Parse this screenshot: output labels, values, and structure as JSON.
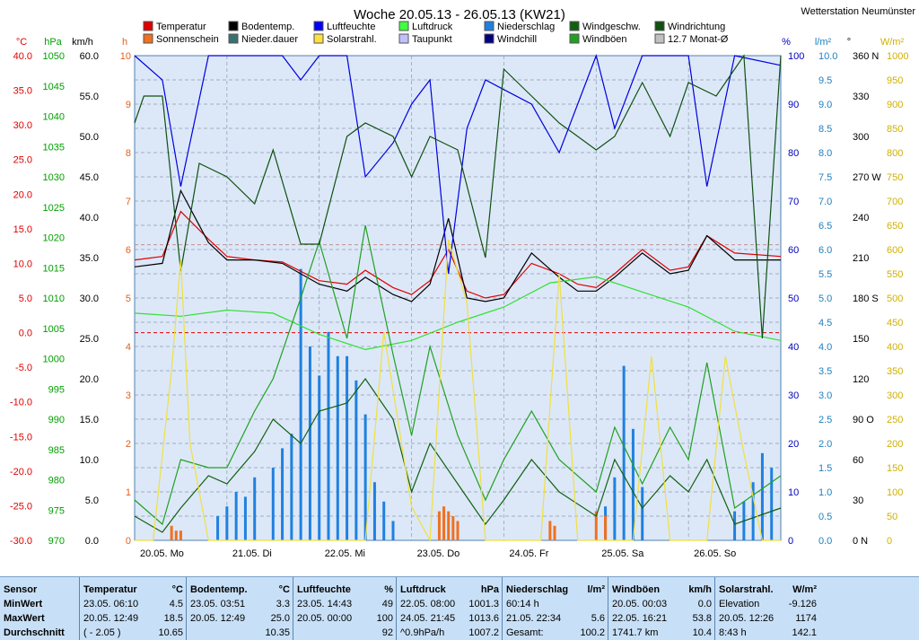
{
  "title": "Woche 20.05.13 - 26.05.13 (KW21)",
  "station": "Wetterstation Neumünster",
  "legend": [
    {
      "label": "Temperatur",
      "color": "#e00000"
    },
    {
      "label": "Sonnenschein",
      "color": "#f07020"
    },
    {
      "label": "Bodentemp.",
      "color": "#000000"
    },
    {
      "label": "Nieder.dauer",
      "color": "#3a7070"
    },
    {
      "label": "Luftfeuchte",
      "color": "#0000ff"
    },
    {
      "label": "Solarstrahl.",
      "color": "#ffe040"
    },
    {
      "label": "Luftdruck",
      "color": "#40ff40"
    },
    {
      "label": "Taupunkt",
      "color": "#c0c0ff"
    },
    {
      "label": "Niederschlag",
      "color": "#2080e0"
    },
    {
      "label": "Windchill",
      "color": "#000080"
    },
    {
      "label": "Windgeschw.",
      "color": "#106010"
    },
    {
      "label": "Windböen",
      "color": "#20a020"
    },
    {
      "label": "Windrichtung",
      "color": "#105010"
    },
    {
      "label": "12.7 Monat-Ø",
      "color": "#c0c0c0"
    }
  ],
  "chart_data": {
    "type": "line",
    "x_labels": [
      "20.05. Mo",
      "21.05. Di",
      "22.05. Mi",
      "23.05. Do",
      "24.05. Fr",
      "25.05. Sa",
      "26.05. So"
    ],
    "axes": {
      "temp": {
        "unit": "°C",
        "min": -30,
        "max": 40,
        "ticks": [
          "40.0",
          "35.0",
          "30.0",
          "25.0",
          "20.0",
          "15.0",
          "10.0",
          "5.0",
          "0.0",
          "-5.0",
          "-10.0",
          "-15.0",
          "-20.0",
          "-25.0",
          "-30.0"
        ]
      },
      "pressure": {
        "unit": "hPa",
        "min": 970,
        "max": 1050,
        "ticks": [
          "1050",
          "1045",
          "1040",
          "1035",
          "1030",
          "1025",
          "1020",
          "1015",
          "1010",
          "1005",
          "1000",
          "995",
          "990",
          "985",
          "980",
          "975",
          "970"
        ]
      },
      "wind": {
        "unit": "km/h",
        "min": 0,
        "max": 60,
        "ticks": [
          "60.0",
          "55.0",
          "50.0",
          "45.0",
          "40.0",
          "35.0",
          "30.0",
          "25.0",
          "20.0",
          "15.0",
          "10.0",
          "5.0",
          "0.0"
        ]
      },
      "sun_hours": {
        "unit": "h",
        "min": 0,
        "max": 10,
        "ticks": [
          "10",
          "9",
          "8",
          "7",
          "6",
          "5",
          "4",
          "3",
          "2",
          "1",
          "0"
        ]
      },
      "humidity": {
        "unit": "%",
        "min": 0,
        "max": 100,
        "ticks": [
          "100",
          "90",
          "80",
          "70",
          "60",
          "50",
          "40",
          "30",
          "20",
          "10",
          "0"
        ]
      },
      "rain": {
        "unit": "l/m²",
        "min": 0,
        "max": 10,
        "ticks": [
          "10.0",
          "9.5",
          "9.0",
          "8.5",
          "8.0",
          "7.5",
          "7.0",
          "6.5",
          "6.0",
          "5.5",
          "5.0",
          "4.5",
          "4.0",
          "3.5",
          "3.0",
          "2.5",
          "2.0",
          "1.5",
          "1.0",
          "0.5",
          "0.0"
        ]
      },
      "direction": {
        "unit": "°",
        "min": 0,
        "max": 360,
        "ticks": [
          "360 N",
          "330",
          "300",
          "270 W",
          "240",
          "210",
          "180 S",
          "150",
          "120",
          "90 O",
          "60",
          "30",
          "0 N"
        ]
      },
      "solar": {
        "unit": "W/m²",
        "min": 0,
        "max": 1000,
        "ticks": [
          "1000",
          "950",
          "900",
          "850",
          "800",
          "750",
          "700",
          "650",
          "600",
          "550",
          "500",
          "450",
          "400",
          "350",
          "300",
          "250",
          "200",
          "150",
          "100",
          "50",
          "0"
        ]
      }
    },
    "series": [
      {
        "name": "Temperatur",
        "x": [
          0,
          0.3,
          0.5,
          0.8,
          1.0,
          1.3,
          1.6,
          2.0,
          2.3,
          2.5,
          2.8,
          3.0,
          3.2,
          3.4,
          3.6,
          3.8,
          4.0,
          4.3,
          4.6,
          4.8,
          5.0,
          5.2,
          5.5,
          5.8,
          6.0,
          6.2,
          6.5,
          7.0
        ],
        "values": [
          10.5,
          11.0,
          17.5,
          13.5,
          11.0,
          10.5,
          10.2,
          7.5,
          7.0,
          9.0,
          6.5,
          5.5,
          7.5,
          12.0,
          6.0,
          5.0,
          5.5,
          10.0,
          8.5,
          7.0,
          6.5,
          8.5,
          12.0,
          9.0,
          9.5,
          14.0,
          11.5,
          11.0
        ]
      },
      {
        "name": "Bodentemp.",
        "x": [
          0,
          0.3,
          0.5,
          0.8,
          1.0,
          1.3,
          1.6,
          2.0,
          2.3,
          2.5,
          2.8,
          3.0,
          3.2,
          3.4,
          3.6,
          3.8,
          4.0,
          4.3,
          4.6,
          4.8,
          5.0,
          5.2,
          5.5,
          5.8,
          6.0,
          6.2,
          6.5,
          7.0
        ],
        "values": [
          9.5,
          10.0,
          20.5,
          13.0,
          10.5,
          10.5,
          10.0,
          7.0,
          6.0,
          8.0,
          5.5,
          4.5,
          7.0,
          16.5,
          5.0,
          4.5,
          5.0,
          11.5,
          8.0,
          6.0,
          6.0,
          8.0,
          11.5,
          8.5,
          9.0,
          14.0,
          10.5,
          10.5
        ]
      },
      {
        "name": "Luftdruck",
        "x": [
          0,
          0.5,
          1.0,
          1.5,
          2.0,
          2.5,
          3.0,
          3.5,
          4.0,
          4.5,
          5.0,
          5.5,
          6.0,
          6.5,
          7.0
        ],
        "values": [
          1007.5,
          1007.0,
          1008.0,
          1007.5,
          1004.0,
          1001.5,
          1003.0,
          1006.0,
          1008.5,
          1012.5,
          1013.5,
          1011.0,
          1008.5,
          1004.5,
          1003.0
        ]
      },
      {
        "name": "Luftfeuchte",
        "x": [
          0,
          0.3,
          0.5,
          0.8,
          1.0,
          1.3,
          1.6,
          1.8,
          2.0,
          2.3,
          2.5,
          2.8,
          3.0,
          3.2,
          3.4,
          3.6,
          3.8,
          4.0,
          4.3,
          4.6,
          4.8,
          5.0,
          5.2,
          5.5,
          5.8,
          6.0,
          6.2,
          6.5,
          7.0
        ],
        "values": [
          100,
          95,
          73,
          100,
          100,
          100,
          100,
          95,
          100,
          100,
          75,
          82,
          90,
          95,
          55,
          85,
          95,
          93,
          90,
          80,
          90,
          100,
          85,
          100,
          100,
          100,
          73,
          100,
          98
        ]
      },
      {
        "name": "Windgeschw.",
        "x": [
          0,
          0.3,
          0.5,
          0.8,
          1.0,
          1.3,
          1.5,
          1.8,
          2.0,
          2.3,
          2.5,
          2.8,
          3.0,
          3.2,
          3.5,
          3.8,
          4.0,
          4.3,
          4.6,
          5.0,
          5.2,
          5.5,
          5.8,
          6.0,
          6.2,
          6.5,
          7.0
        ],
        "values": [
          3,
          1,
          4,
          8,
          7,
          11,
          15,
          12,
          16,
          17,
          20,
          15,
          6,
          12,
          7,
          2,
          5,
          10,
          6,
          3,
          10,
          4,
          8,
          6,
          10,
          2,
          4
        ]
      },
      {
        "name": "Windböen",
        "x": [
          0,
          0.3,
          0.5,
          0.8,
          1.0,
          1.3,
          1.5,
          1.8,
          2.0,
          2.3,
          2.5,
          2.8,
          3.0,
          3.2,
          3.5,
          3.8,
          4.0,
          4.3,
          4.6,
          5.0,
          5.2,
          5.5,
          5.8,
          6.0,
          6.2,
          6.5,
          7.0
        ],
        "values": [
          5,
          2,
          10,
          9,
          9,
          16,
          20,
          30,
          37,
          25,
          39,
          23,
          13,
          24,
          13,
          5,
          10,
          16,
          10,
          6,
          14,
          7,
          14,
          10,
          22,
          4,
          8
        ]
      },
      {
        "name": "Windrichtung",
        "x": [
          0,
          0.1,
          0.3,
          0.5,
          0.7,
          1.0,
          1.3,
          1.5,
          1.8,
          2.0,
          2.3,
          2.5,
          2.8,
          3.0,
          3.2,
          3.5,
          3.8,
          4.0,
          4.3,
          4.6,
          5.0,
          5.2,
          5.5,
          5.8,
          6.0,
          6.3,
          6.6,
          6.8,
          7.0
        ],
        "values": [
          310,
          330,
          330,
          200,
          280,
          270,
          250,
          290,
          220,
          220,
          300,
          310,
          300,
          270,
          300,
          290,
          210,
          350,
          330,
          310,
          290,
          300,
          340,
          300,
          340,
          330,
          360,
          150,
          360
        ]
      },
      {
        "name": "Solarstrahl.",
        "x": [
          0,
          0.2,
          0.4,
          0.5,
          0.6,
          0.8,
          1.2,
          1.4,
          2.2,
          2.5,
          2.7,
          3.0,
          3.2,
          3.4,
          3.6,
          3.8,
          4.2,
          4.4,
          4.6,
          4.8,
          5.2,
          5.4,
          5.6,
          5.8,
          6.2,
          6.4,
          6.6,
          6.8,
          7.0
        ],
        "values": [
          0,
          0,
          350,
          580,
          200,
          0,
          0,
          0,
          0,
          0,
          430,
          70,
          0,
          620,
          490,
          0,
          0,
          0,
          550,
          0,
          0,
          0,
          380,
          0,
          0,
          380,
          180,
          0,
          0
        ]
      },
      {
        "name": "Niederschlag",
        "x": [
          0.9,
          1.0,
          1.1,
          1.2,
          1.3,
          1.5,
          1.6,
          1.7,
          1.8,
          1.9,
          2.0,
          2.1,
          2.2,
          2.3,
          2.4,
          2.5,
          2.6,
          2.7,
          2.8,
          5.1,
          5.2,
          5.3,
          5.4,
          5.5,
          6.5,
          6.6,
          6.7,
          6.8,
          6.9
        ],
        "values": [
          0.5,
          0.7,
          1.0,
          0.9,
          1.3,
          1.5,
          1.9,
          2.2,
          5.6,
          4.0,
          3.4,
          4.3,
          3.8,
          3.8,
          3.3,
          2.6,
          1.2,
          0.8,
          0.4,
          0.7,
          1.3,
          3.6,
          2.3,
          1.1,
          0.6,
          0.8,
          1.2,
          1.8,
          1.5
        ]
      },
      {
        "name": "Sonnenschein",
        "x": [
          0.4,
          0.45,
          0.5,
          3.3,
          3.35,
          3.4,
          3.45,
          3.5,
          4.5,
          4.55,
          5.0,
          5.1
        ],
        "values": [
          0.3,
          0.2,
          0.2,
          0.6,
          0.7,
          0.6,
          0.5,
          0.4,
          0.4,
          0.3,
          0.6,
          0.5
        ]
      }
    ],
    "reference_lines": [
      {
        "label": "12.7 Monat-Ø",
        "value": 12.7,
        "axis": "temp"
      },
      {
        "label": "0 °C",
        "value": 0,
        "axis": "temp"
      }
    ]
  },
  "stats": [
    {
      "sensor": "Temperatur",
      "unit": "°C",
      "rows": [
        [
          "23.05.  06:10",
          "4.5"
        ],
        [
          "20.05.  12:49",
          "18.5"
        ],
        [
          "( - 2.05 )",
          "10.65"
        ]
      ]
    },
    {
      "sensor": "Bodentemp.",
      "unit": "°C",
      "rows": [
        [
          "23.05.  03:51",
          "3.3"
        ],
        [
          "20.05.  12:49",
          "25.0"
        ],
        [
          "",
          "10.35"
        ]
      ]
    },
    {
      "sensor": "Luftfeuchte",
      "unit": "%",
      "rows": [
        [
          "23.05.  14:43",
          "49"
        ],
        [
          "20.05.  00:00",
          "100"
        ],
        [
          "",
          "92"
        ]
      ]
    },
    {
      "sensor": "Luftdruck",
      "unit": "hPa",
      "rows": [
        [
          "22.05.  08:00",
          "1001.3"
        ],
        [
          "24.05.  21:45",
          "1013.6"
        ],
        [
          "^0.9hPa/h",
          "1007.2"
        ]
      ]
    },
    {
      "sensor": "Niederschlag",
      "unit": "l/m²",
      "rows": [
        [
          "60:14 h",
          ""
        ],
        [
          "21.05.  22:34",
          "5.6"
        ],
        [
          "Gesamt:",
          "100.2"
        ]
      ]
    },
    {
      "sensor": "Windböen",
      "unit": "km/h",
      "rows": [
        [
          "20.05.  00:03",
          "0.0"
        ],
        [
          "22.05.  16:21",
          "53.8"
        ],
        [
          "1741.7 km",
          "10.4"
        ]
      ]
    },
    {
      "sensor": "Solarstrahl.",
      "unit": "W/m²",
      "rows": [
        [
          "Elevation",
          "-9.126"
        ],
        [
          "20.05.  12:26",
          "1174"
        ],
        [
          "8:43 h",
          "142.1"
        ]
      ]
    }
  ],
  "row_labels": {
    "sensor": "Sensor",
    "min": "MinWert",
    "max": "MaxWert",
    "avg": "Durchschnitt"
  }
}
